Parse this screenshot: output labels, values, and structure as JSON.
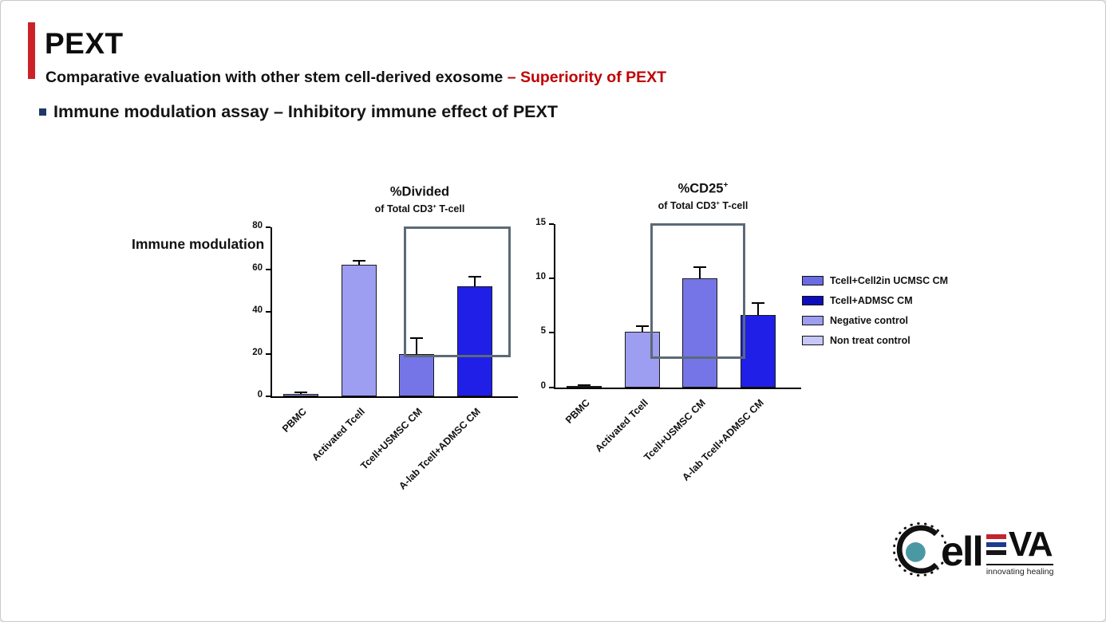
{
  "header": {
    "title": "PEXT",
    "subtitle_main": "Comparative evaluation with other stem cell-derived exosome ",
    "subtitle_accent": "– Superiority of PEXT",
    "bullet": "Immune modulation assay – Inhibitory immune effect of PEXT"
  },
  "charts_section": {
    "side_label": "Immune modulation"
  },
  "legend": [
    {
      "label": "Tcell+Cell2in UCMSC CM",
      "color": "#6b6be4"
    },
    {
      "label": "Tcell+ADMSC CM",
      "color": "#0d0dbb"
    },
    {
      "label": "Negative control",
      "color": "#9d9df2"
    },
    {
      "label": "Non treat control",
      "color": "#c7c7f8"
    }
  ],
  "chart_data": [
    {
      "type": "bar",
      "title": "%Divided",
      "title_sup": "",
      "subtitle_pre": "of Total CD3",
      "subtitle_sup": "+",
      "subtitle_post": " T-cell",
      "categories": [
        "PBMC",
        "Activated Tcell",
        "Tcell+USMSC CM",
        "A-lab Tcell+ADMSC CM"
      ],
      "values": [
        1,
        62,
        20,
        52
      ],
      "errors": [
        0.6,
        2,
        7.5,
        4.5
      ],
      "bar_colors": [
        "#9d9df2",
        "#9d9df2",
        "#7575e8",
        "#1f1fe8"
      ],
      "ylim": [
        0,
        80
      ],
      "yticks": [
        0,
        20,
        40,
        60,
        80
      ],
      "grid": false,
      "legend_position": "right",
      "highlight_box": {
        "covers": [
          "Tcell+USMSC CM",
          "A-lab Tcell+ADMSC CM"
        ],
        "left_frac": 0.57,
        "right_frac": 1.03,
        "bottom_value": 18.5,
        "color": "#5c6a76"
      }
    },
    {
      "type": "bar",
      "title": "%CD25",
      "title_sup": "+",
      "subtitle_pre": "of Total CD3",
      "subtitle_sup": "+",
      "subtitle_post": " T-cell",
      "categories": [
        "PBMC",
        "Activated Tcell",
        "Tcell+USMSC CM",
        "A-lab Tcell+ADMSC CM"
      ],
      "values": [
        0.15,
        5.1,
        10,
        6.6
      ],
      "errors": [
        0.08,
        0.5,
        1,
        1.1
      ],
      "bar_colors": [
        "#9d9df2",
        "#9d9df2",
        "#7575e8",
        "#1f1fe8"
      ],
      "ylim": [
        0,
        15
      ],
      "yticks": [
        0,
        5,
        10,
        15
      ],
      "grid": false,
      "legend_position": "right",
      "highlight_box": {
        "covers": [
          "Tcell+USMSC CM",
          "A-lab Tcell+ADMSC CM"
        ],
        "left_frac": 0.41,
        "right_frac": 0.82,
        "bottom_value": 2.6,
        "color": "#5c6a76"
      }
    }
  ],
  "logo": {
    "ell_text": "ell",
    "va_text": "VA",
    "tagline": "innovating healing",
    "stripe_colors": [
      "#c4242f",
      "#1d3a8f",
      "#15151a"
    ],
    "teal": "#4a98a4"
  }
}
